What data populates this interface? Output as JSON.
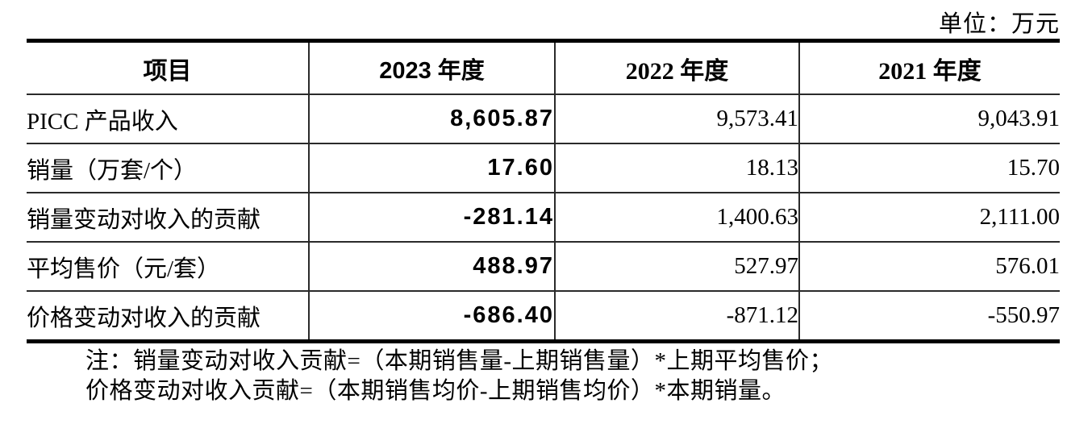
{
  "unit_label": "单位：万元",
  "table": {
    "columns": [
      "项目",
      "2023 年度",
      "2022 年度",
      "2021 年度"
    ],
    "rows": [
      {
        "label": "PICC 产品收入",
        "y2023": "8,605.87",
        "y2022": "9,573.41",
        "y2021": "9,043.91"
      },
      {
        "label": "销量（万套/个）",
        "y2023": "17.60",
        "y2022": "18.13",
        "y2021": "15.70"
      },
      {
        "label": "销量变动对收入的贡献",
        "y2023": "-281.14",
        "y2022": "1,400.63",
        "y2021": "2,111.00"
      },
      {
        "label": "平均售价（元/套）",
        "y2023": "488.97",
        "y2022": "527.97",
        "y2021": "576.01"
      },
      {
        "label": "价格变动对收入的贡献",
        "y2023": "-686.40",
        "y2022": "-871.12",
        "y2021": "-550.97"
      }
    ]
  },
  "notes": [
    "注：销量变动对收入贡献=（本期销售量-上期销售量）*上期平均售价；",
    "价格变动对收入贡献=（本期销售均价-上期销售均价）*本期销量。"
  ]
}
